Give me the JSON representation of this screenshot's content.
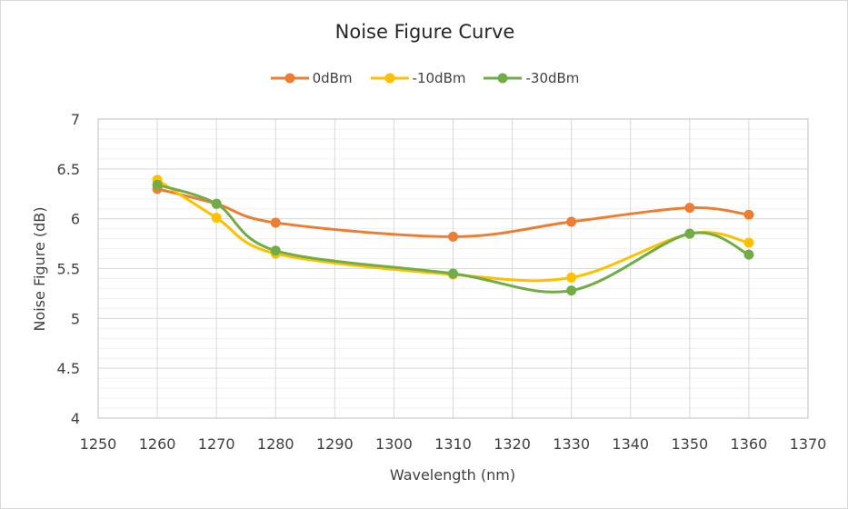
{
  "chart_data": {
    "type": "line",
    "title": "Noise Figure Curve",
    "xlabel": "Wavelength (nm)",
    "ylabel": "Noise Figure (dB)",
    "xlim": [
      1250,
      1370
    ],
    "ylim": [
      4,
      7
    ],
    "x_ticks": [
      1250,
      1260,
      1270,
      1280,
      1290,
      1300,
      1310,
      1320,
      1330,
      1340,
      1350,
      1360,
      1370
    ],
    "y_ticks": [
      4,
      4.5,
      5,
      5.5,
      6,
      6.5,
      7
    ],
    "grid": true,
    "minor_grid_y": true,
    "smoothed": true,
    "legend_position": "top",
    "x": [
      1260,
      1270,
      1280,
      1310,
      1330,
      1350,
      1360
    ],
    "series": [
      {
        "name": "0dBm",
        "color": "#ED7D31",
        "values": [
          6.3,
          6.15,
          5.96,
          5.82,
          5.97,
          6.11,
          6.04
        ]
      },
      {
        "name": "-10dBm",
        "color": "#FFC000",
        "values": [
          6.39,
          6.01,
          5.65,
          5.44,
          5.41,
          5.85,
          5.76
        ]
      },
      {
        "name": "-30dBm",
        "color": "#70AD47",
        "values": [
          6.34,
          6.15,
          5.68,
          5.45,
          5.28,
          5.85,
          5.64
        ]
      }
    ]
  }
}
